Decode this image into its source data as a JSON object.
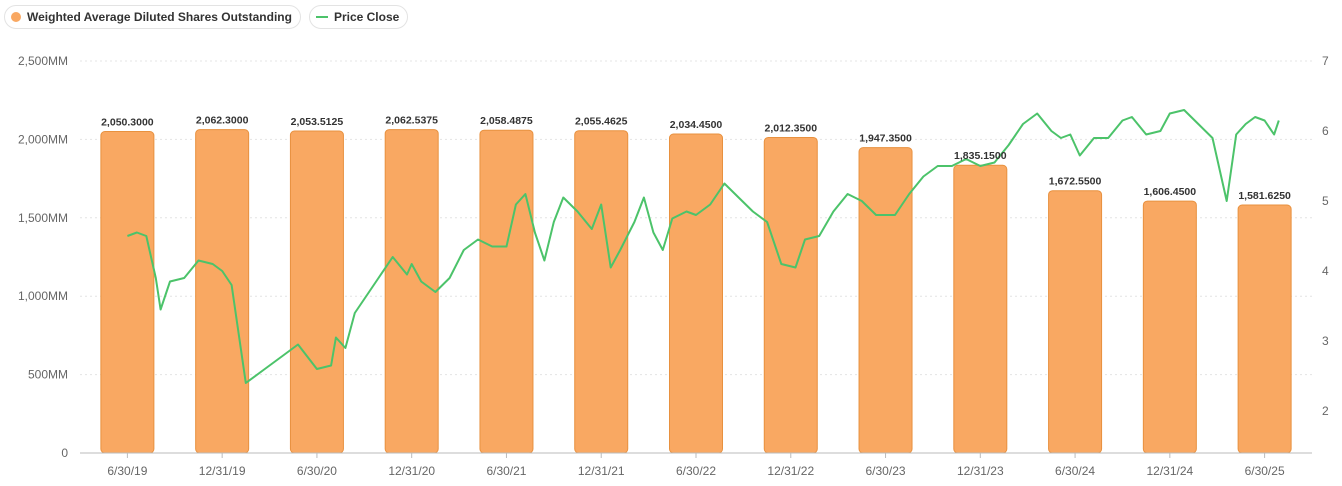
{
  "legend": {
    "shares_label": "Weighted Average Diluted Shares Outstanding",
    "price_label": "Price Close"
  },
  "colors": {
    "bar_fill": "#f9a862",
    "bar_stroke": "#e8913f",
    "line": "#4cc36a",
    "grid": "#e4e4e4",
    "axis": "#bbbbbb"
  },
  "chart_data": {
    "type": "bar",
    "categories": [
      "6/30/19",
      "12/31/19",
      "6/30/20",
      "12/31/20",
      "6/30/21",
      "12/31/21",
      "6/30/22",
      "12/31/22",
      "6/30/23",
      "12/31/23",
      "6/30/24",
      "12/31/24",
      "6/30/25"
    ],
    "series": [
      {
        "name": "Weighted Average Diluted Shares Outstanding",
        "type": "bar",
        "axis": "left",
        "values": [
          2050.3,
          2062.3,
          2053.5125,
          2062.5375,
          2058.4875,
          2055.4625,
          2034.45,
          2012.35,
          1947.35,
          1835.15,
          1672.55,
          1606.45,
          1581.625
        ],
        "labels": [
          "2,050.3000",
          "2,062.3000",
          "2,053.5125",
          "2,062.5375",
          "2,058.4875",
          "2,055.4625",
          "2,034.4500",
          "2,012.3500",
          "1,947.3500",
          "1,835.1500",
          "1,672.5500",
          "1,606.4500",
          "1,581.6250"
        ]
      },
      {
        "name": "Price Close",
        "type": "line",
        "axis": "right",
        "x": [
          0,
          0.1,
          0.2,
          0.3,
          0.35,
          0.45,
          0.6,
          0.75,
          0.9,
          1.0,
          1.1,
          1.25,
          1.45,
          1.65,
          1.8,
          2.0,
          2.15,
          2.2,
          2.3,
          2.4,
          2.5,
          2.65,
          2.8,
          2.95,
          3.0,
          3.1,
          3.25,
          3.4,
          3.55,
          3.7,
          3.85,
          4.0,
          4.1,
          4.2,
          4.3,
          4.4,
          4.5,
          4.6,
          4.75,
          4.9,
          5.0,
          5.1,
          5.2,
          5.35,
          5.45,
          5.55,
          5.65,
          5.75,
          5.9,
          6.0,
          6.15,
          6.3,
          6.45,
          6.6,
          6.75,
          6.9,
          7.05,
          7.15,
          7.3,
          7.45,
          7.6,
          7.75,
          7.9,
          8.0,
          8.1,
          8.25,
          8.4,
          8.55,
          8.7,
          8.85,
          9.0,
          9.15,
          9.3,
          9.45,
          9.6,
          9.75,
          9.85,
          9.95,
          10.05,
          10.2,
          10.35,
          10.5,
          10.6,
          10.75,
          10.9,
          11.0,
          11.15,
          11.3,
          11.45,
          11.6,
          11.7,
          11.8,
          11.9,
          12.0,
          12.1,
          12.15
        ],
        "values": [
          4.5,
          4.55,
          4.5,
          3.9,
          3.45,
          3.85,
          3.9,
          4.15,
          4.1,
          4.0,
          3.8,
          2.4,
          2.6,
          2.8,
          2.95,
          2.6,
          2.65,
          3.05,
          2.9,
          3.4,
          3.6,
          3.9,
          4.2,
          3.95,
          4.1,
          3.85,
          3.7,
          3.9,
          4.3,
          4.45,
          4.35,
          4.35,
          4.95,
          5.1,
          4.55,
          4.15,
          4.7,
          5.05,
          4.85,
          4.6,
          4.95,
          4.05,
          4.3,
          4.7,
          5.05,
          4.55,
          4.3,
          4.75,
          4.85,
          4.8,
          4.95,
          5.25,
          5.05,
          4.85,
          4.7,
          4.1,
          4.05,
          4.45,
          4.5,
          4.85,
          5.1,
          5.0,
          4.8,
          4.8,
          4.8,
          5.1,
          5.35,
          5.5,
          5.5,
          5.6,
          5.5,
          5.55,
          5.8,
          6.1,
          6.25,
          6.0,
          5.9,
          5.95,
          5.65,
          5.9,
          5.9,
          6.15,
          6.2,
          5.95,
          6.0,
          6.25,
          6.3,
          6.1,
          5.9,
          5.0,
          5.95,
          6.1,
          6.2,
          6.15,
          5.95,
          6.15
        ]
      }
    ],
    "y_left": {
      "min": 0,
      "max": 2500,
      "ticks": [
        0,
        500,
        1000,
        1500,
        2000,
        2500
      ],
      "tick_labels": [
        "0",
        "500MM",
        "1,000MM",
        "1,500MM",
        "2,000MM",
        "2,500MM"
      ]
    },
    "y_right": {
      "min": 1.4,
      "max": 7,
      "ticks": [
        2,
        3,
        4,
        5,
        6,
        7
      ],
      "tick_labels": [
        "2",
        "3",
        "4",
        "5",
        "6",
        "7"
      ]
    },
    "grid": true,
    "legend_position": "top-left"
  }
}
